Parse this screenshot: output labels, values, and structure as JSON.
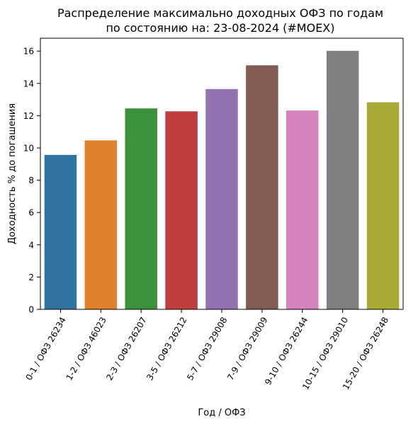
{
  "chart_data": {
    "type": "bar",
    "title": "Распределение максимально доходных ОФЗ по годам",
    "subtitle": "по состоянию на: 23-08-2024 (#MOEX)",
    "xlabel": "Год / ОФЗ",
    "ylabel": "Доходность % до погашения",
    "categories": [
      "0-1 / ОФЗ 26234",
      "1-2 / ОФЗ 46023",
      "2-3 / ОФЗ 26207",
      "3-5 / ОФЗ 26212",
      "5-7 / ОФЗ 29008",
      "7-9 / ОФЗ 29009",
      "9-10 / ОФЗ 26244",
      "10-15 / ОФЗ 29010",
      "15-20 / ОФЗ 26248"
    ],
    "values": [
      9.57,
      10.47,
      12.45,
      12.27,
      13.65,
      15.12,
      12.32,
      16.02,
      12.83
    ],
    "colors": [
      "#3274a1",
      "#e1812c",
      "#3a923a",
      "#c03d3e",
      "#9372b2",
      "#845b53",
      "#d684bd",
      "#7f7f7f",
      "#a9aa35"
    ],
    "ylim": [
      0,
      16.8
    ],
    "yticks": [
      "0",
      "2",
      "4",
      "6",
      "8",
      "10",
      "12",
      "14",
      "16"
    ],
    "grid": false,
    "legend": "none"
  }
}
